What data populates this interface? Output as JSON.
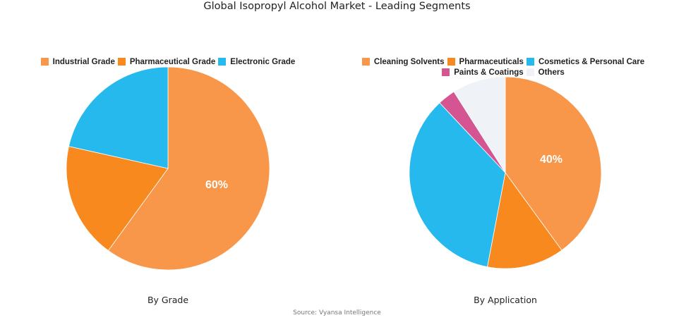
{
  "title": "Global Isopropyl Alcohol Market - Leading Segments",
  "source": "Source: Vyansa Intelligence",
  "charts": {
    "grade": {
      "subtitle": "By Grade",
      "label": "60%"
    },
    "application": {
      "subtitle": "By Application",
      "label": "40%"
    }
  },
  "legend": {
    "grade": [
      {
        "label": "Industrial Grade",
        "color": "#F8974A"
      },
      {
        "label": "Pharmaceutical Grade",
        "color": "#F7891F"
      },
      {
        "label": "Electronic Grade",
        "color": "#25B9EE"
      }
    ],
    "application": [
      {
        "label": "Cleaning Solvents",
        "color": "#F8974A"
      },
      {
        "label": "Pharmaceuticals",
        "color": "#F7891F"
      },
      {
        "label": "Cosmetics & Personal Care",
        "color": "#25B9EE"
      },
      {
        "label": "Paints & Coatings",
        "color": "#D55593"
      },
      {
        "label": "Others",
        "color": "#EFF3F8"
      }
    ]
  },
  "chart_data": [
    {
      "type": "pie",
      "title": "By Grade",
      "categories": [
        "Industrial Grade",
        "Pharmaceutical Grade",
        "Electronic Grade"
      ],
      "values": [
        60,
        18.5,
        21.5
      ],
      "colors": [
        "#F8974A",
        "#F7891F",
        "#25B9EE"
      ],
      "data_labels": [
        "60%"
      ],
      "legend_position": "top"
    },
    {
      "type": "pie",
      "title": "By Application",
      "categories": [
        "Cleaning Solvents",
        "Pharmaceuticals",
        "Cosmetics & Personal Care",
        "Paints & Coatings",
        "Others"
      ],
      "values": [
        40,
        13,
        35,
        3,
        9
      ],
      "colors": [
        "#F8974A",
        "#F7891F",
        "#25B9EE",
        "#D55593",
        "#EFF3F8"
      ],
      "data_labels": [
        "40%"
      ],
      "legend_position": "top"
    }
  ]
}
